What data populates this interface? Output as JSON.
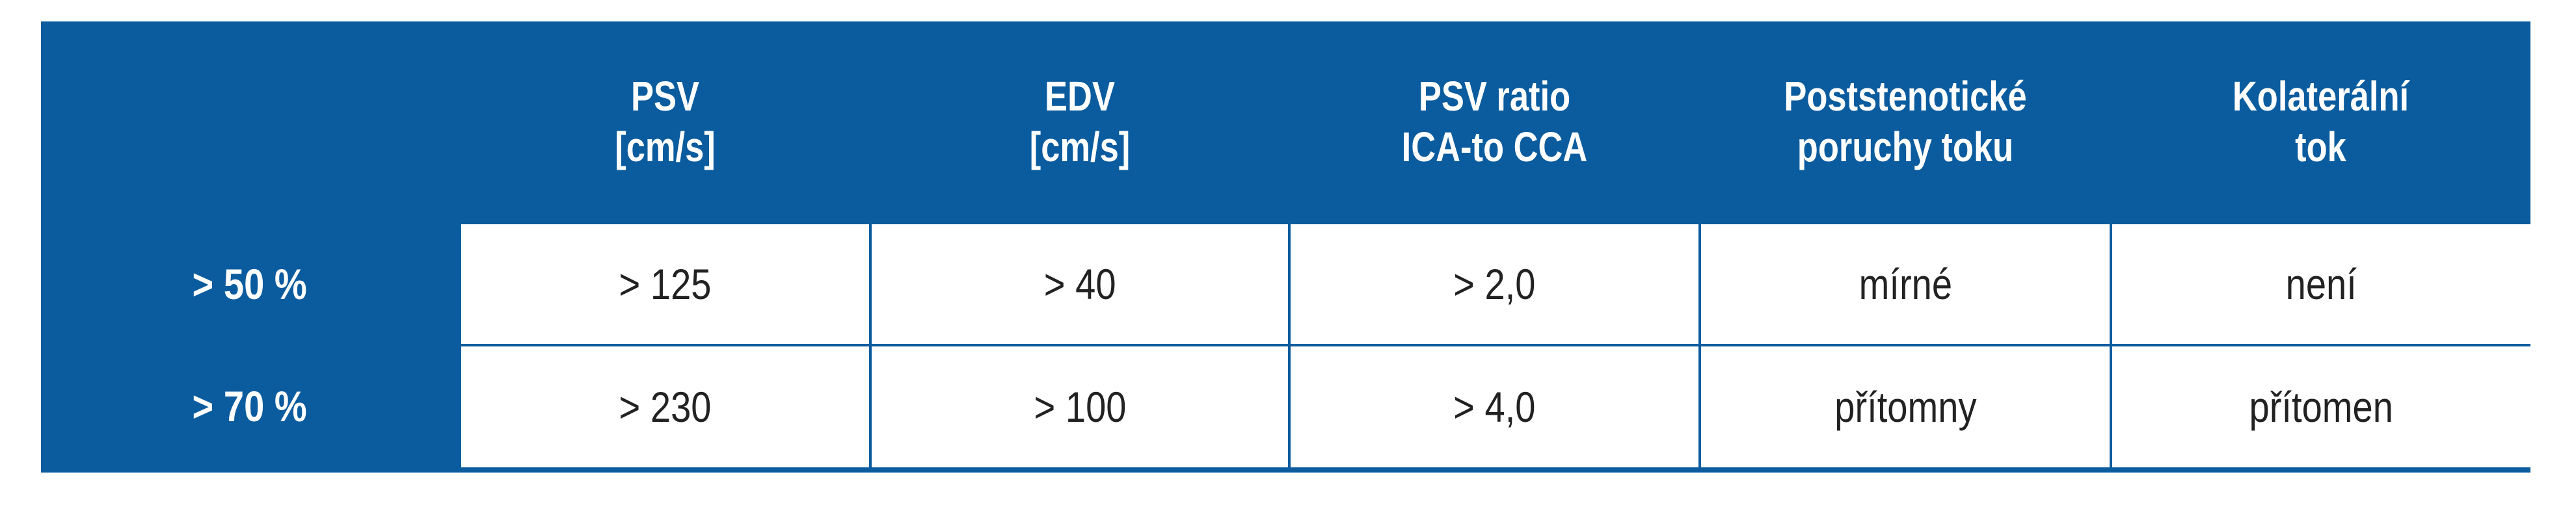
{
  "table": {
    "header": [
      [
        "PSV",
        "[cm/s]"
      ],
      [
        "EDV",
        "[cm/s]"
      ],
      [
        "PSV ratio",
        "ICA-to CCA"
      ],
      [
        "Poststenotické",
        "poruchy toku"
      ],
      [
        "Kolaterální",
        "tok"
      ]
    ],
    "rows": [
      {
        "label": "> 50 %",
        "cells": [
          "> 125",
          "> 40",
          "> 2,0",
          "mírné",
          "není"
        ]
      },
      {
        "label": "> 70 %",
        "cells": [
          "> 230",
          "> 100",
          "> 4,0",
          "přítomny",
          "přítomen"
        ]
      }
    ]
  }
}
